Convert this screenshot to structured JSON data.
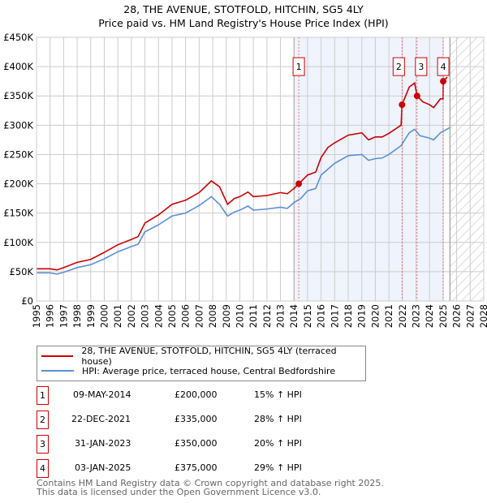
{
  "title": "28, THE AVENUE, STOTFOLD, HITCHIN, SG5 4LY",
  "subtitle": "Price paid vs. HM Land Registry's House Price Index (HPI)",
  "legend": {
    "property": "28, THE AVENUE, STOTFOLD, HITCHIN, SG5 4LY (terraced house)",
    "hpi": "HPI: Average price, terraced house, Central Bedfordshire"
  },
  "sales": [
    {
      "num": "1",
      "date": "09-MAY-2014",
      "price": "£200,000",
      "hpi": "15% ↑ HPI"
    },
    {
      "num": "2",
      "date": "22-DEC-2021",
      "price": "£335,000",
      "hpi": "28% ↑ HPI"
    },
    {
      "num": "3",
      "date": "31-JAN-2023",
      "price": "£350,000",
      "hpi": "20% ↑ HPI"
    },
    {
      "num": "4",
      "date": "03-JAN-2025",
      "price": "£375,000",
      "hpi": "29% ↑ HPI"
    }
  ],
  "footer": [
    "Contains HM Land Registry data © Crown copyright and database right 2025.",
    "This data is licensed under the Open Government Licence v3.0."
  ],
  "colors": {
    "property": "#cc0000",
    "hpi": "#5b8fd6",
    "shade": "#eef3fc"
  },
  "chart_data": {
    "type": "line",
    "xlim": [
      1995,
      2028
    ],
    "ylim": [
      0,
      450000
    ],
    "yticks": [
      0,
      50000,
      100000,
      150000,
      200000,
      250000,
      300000,
      350000,
      400000,
      450000
    ],
    "ytick_labels": [
      "£0",
      "£50K",
      "£100K",
      "£150K",
      "£200K",
      "£250K",
      "£300K",
      "£350K",
      "£400K",
      "£450K"
    ],
    "xticks": [
      1995,
      1996,
      1997,
      1998,
      1999,
      2000,
      2001,
      2002,
      2003,
      2004,
      2005,
      2006,
      2007,
      2008,
      2009,
      2010,
      2011,
      2012,
      2013,
      2014,
      2015,
      2016,
      2017,
      2018,
      2019,
      2020,
      2021,
      2022,
      2023,
      2024,
      2025,
      2026,
      2027,
      2028
    ],
    "shaded_range": [
      2014.0,
      2025.0
    ],
    "forecast_from": 2025.5,
    "sale_points": [
      {
        "x": 2014.35,
        "y": 200000
      },
      {
        "x": 2021.97,
        "y": 335000
      },
      {
        "x": 2023.08,
        "y": 350000
      },
      {
        "x": 2025.01,
        "y": 375000
      }
    ],
    "series": [
      {
        "name": "28, THE AVENUE, STOTFOLD, HITCHIN, SG5 4LY (terraced house)",
        "x": [
          1995,
          1996,
          1996.5,
          1997,
          1998,
          1999,
          2000,
          2001,
          2002,
          2002.5,
          2003,
          2004,
          2005,
          2006,
          2007,
          2007.9,
          2008.5,
          2009.1,
          2009.6,
          2010,
          2010.6,
          2011,
          2012,
          2013,
          2013.5,
          2014,
          2014.35,
          2015,
          2015.6,
          2016,
          2016.5,
          2017,
          2018,
          2019,
          2019.5,
          2020,
          2020.5,
          2021,
          2021.9,
          2021.97,
          2022.5,
          2022.9,
          2023.08,
          2023.5,
          2024,
          2024.3,
          2024.8,
          2025.0,
          2025.01,
          2025.3
        ],
        "y": [
          55000,
          55000,
          53000,
          57000,
          66000,
          71000,
          83000,
          96000,
          105000,
          110000,
          133000,
          147000,
          165000,
          172000,
          185000,
          205000,
          195000,
          165000,
          175000,
          178000,
          186000,
          178000,
          180000,
          185000,
          183000,
          192000,
          200000,
          215000,
          220000,
          245000,
          262000,
          270000,
          283000,
          287000,
          275000,
          280000,
          280000,
          286000,
          300000,
          335000,
          365000,
          372000,
          350000,
          340000,
          335000,
          330000,
          345000,
          345000,
          375000,
          382000
        ]
      },
      {
        "name": "HPI: Average price, terraced house, Central Bedfordshire",
        "x": [
          1995,
          1996,
          1996.5,
          1997,
          1998,
          1999,
          2000,
          2001,
          2002,
          2002.5,
          2003,
          2004,
          2005,
          2006,
          2007,
          2007.9,
          2008.5,
          2009.1,
          2009.6,
          2010,
          2010.6,
          2011,
          2012,
          2013,
          2013.5,
          2014,
          2014.5,
          2015,
          2015.6,
          2016,
          2016.5,
          2017,
          2018,
          2019,
          2019.5,
          2020,
          2020.5,
          2021,
          2021.9,
          2022.5,
          2022.9,
          2023.3,
          2024,
          2024.3,
          2024.8,
          2025.5
        ],
        "y": [
          48000,
          48000,
          46000,
          49000,
          57000,
          62000,
          72000,
          84000,
          93000,
          97000,
          118000,
          130000,
          145000,
          150000,
          163000,
          178000,
          165000,
          145000,
          152000,
          155000,
          162000,
          155000,
          157000,
          160000,
          158000,
          168000,
          175000,
          188000,
          192000,
          215000,
          225000,
          235000,
          248000,
          250000,
          240000,
          243000,
          244000,
          250000,
          265000,
          287000,
          293000,
          282000,
          278000,
          275000,
          287000,
          296000
        ]
      }
    ]
  }
}
